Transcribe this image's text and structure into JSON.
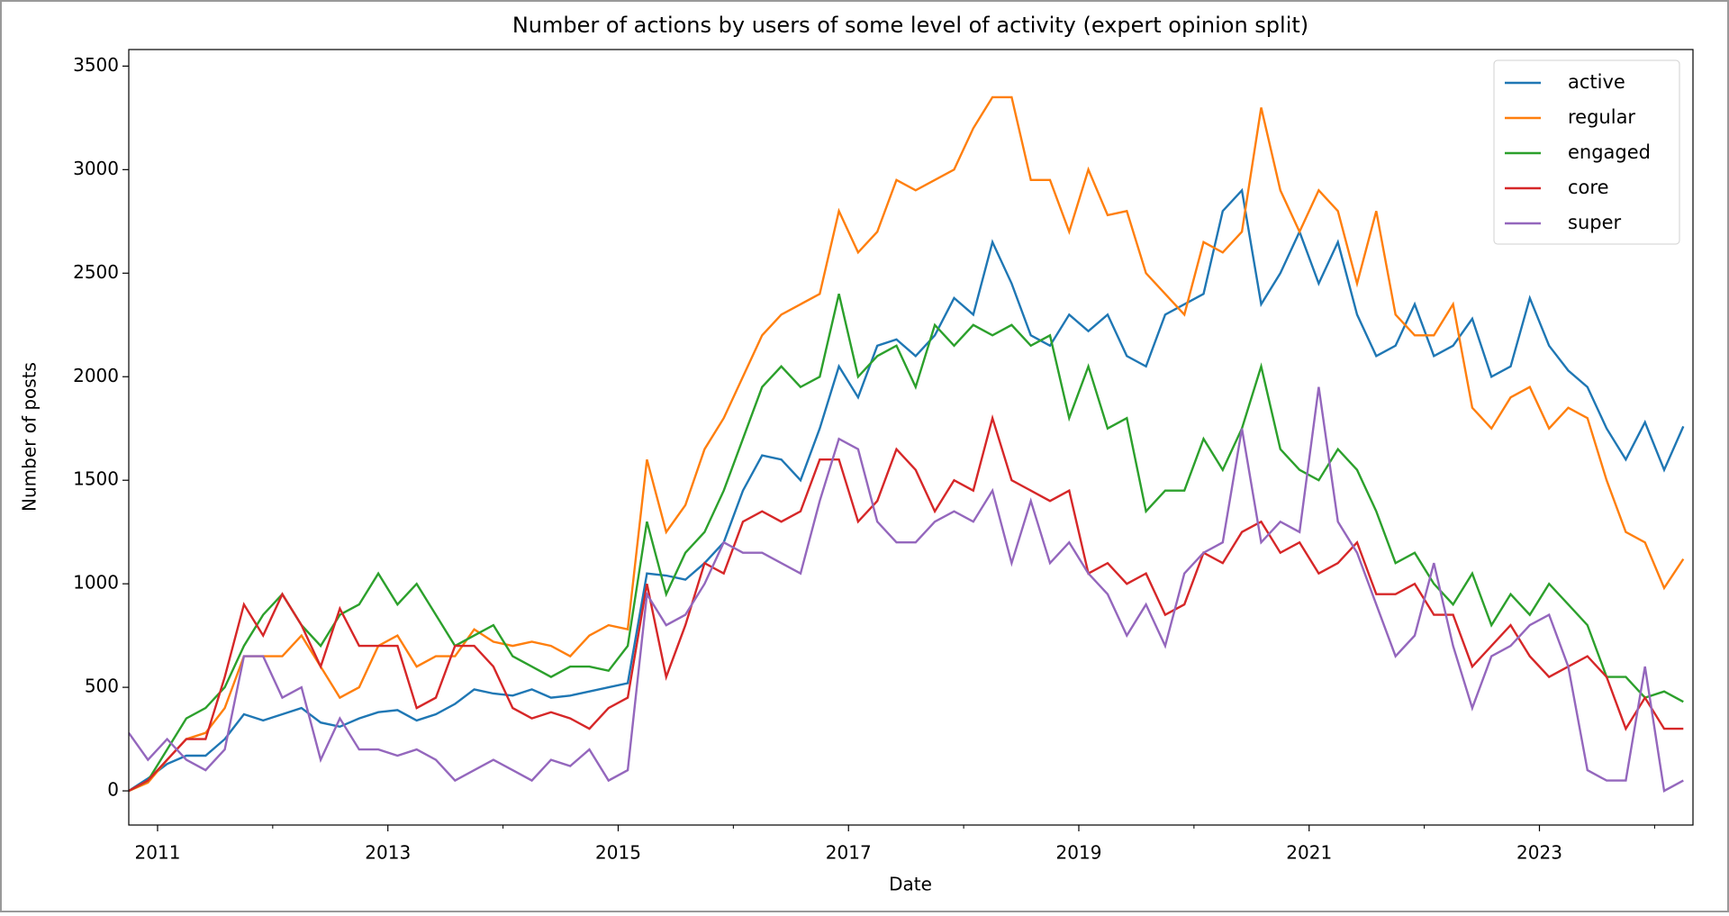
{
  "chart_data": {
    "type": "line",
    "title": "Number of actions by users of some level of activity (expert opinion split)",
    "xlabel": "Date",
    "ylabel": "Number of posts",
    "x": [
      "2010-10",
      "2010-12",
      "2011-02",
      "2011-04",
      "2011-06",
      "2011-08",
      "2011-10",
      "2011-12",
      "2012-02",
      "2012-04",
      "2012-06",
      "2012-08",
      "2012-10",
      "2012-12",
      "2013-02",
      "2013-04",
      "2013-06",
      "2013-08",
      "2013-10",
      "2013-12",
      "2014-02",
      "2014-04",
      "2014-06",
      "2014-08",
      "2014-10",
      "2014-12",
      "2015-02",
      "2015-04",
      "2015-06",
      "2015-08",
      "2015-10",
      "2015-12",
      "2016-02",
      "2016-04",
      "2016-06",
      "2016-08",
      "2016-10",
      "2016-12",
      "2017-02",
      "2017-04",
      "2017-06",
      "2017-08",
      "2017-10",
      "2017-12",
      "2018-02",
      "2018-04",
      "2018-06",
      "2018-08",
      "2018-10",
      "2018-12",
      "2019-02",
      "2019-04",
      "2019-06",
      "2019-08",
      "2019-10",
      "2019-12",
      "2020-02",
      "2020-04",
      "2020-06",
      "2020-08",
      "2020-10",
      "2020-12",
      "2021-02",
      "2021-04",
      "2021-06",
      "2021-08",
      "2021-10",
      "2021-12",
      "2022-02",
      "2022-04",
      "2022-06",
      "2022-08",
      "2022-10",
      "2022-12",
      "2023-02",
      "2023-04",
      "2023-06",
      "2023-08",
      "2023-10",
      "2023-12",
      "2024-02",
      "2024-04"
    ],
    "series": [
      {
        "name": "active",
        "color": "#1f77b4",
        "values": [
          0,
          60,
          130,
          170,
          170,
          250,
          370,
          340,
          370,
          400,
          330,
          310,
          350,
          380,
          390,
          340,
          370,
          420,
          490,
          470,
          460,
          490,
          450,
          460,
          480,
          500,
          520,
          1050,
          1040,
          1020,
          1100,
          1200,
          1450,
          1620,
          1600,
          1500,
          1750,
          2050,
          1900,
          2150,
          2180,
          2100,
          2200,
          2380,
          2300,
          2650,
          2450,
          2200,
          2150,
          2300,
          2220,
          2300,
          2100,
          2050,
          2300,
          2350,
          2400,
          2800,
          2900,
          2350,
          2500,
          2700,
          2450,
          2650,
          2300,
          2100,
          2150,
          2350,
          2100,
          2150,
          2280,
          2000,
          2050,
          2380,
          2150,
          2030,
          1950,
          1750,
          1600,
          1780,
          1550,
          1760
        ]
      },
      {
        "name": "regular",
        "color": "#ff7f0e",
        "values": [
          0,
          40,
          150,
          250,
          280,
          400,
          650,
          650,
          650,
          750,
          600,
          450,
          500,
          700,
          750,
          600,
          650,
          650,
          780,
          720,
          700,
          720,
          700,
          650,
          750,
          800,
          780,
          1600,
          1250,
          1380,
          1650,
          1800,
          2000,
          2200,
          2300,
          2350,
          2400,
          2800,
          2600,
          2700,
          2950,
          2900,
          2950,
          3000,
          3200,
          3350,
          3350,
          2950,
          2950,
          2700,
          3000,
          2780,
          2800,
          2500,
          2400,
          2300,
          2650,
          2600,
          2700,
          3300,
          2900,
          2700,
          2900,
          2800,
          2450,
          2800,
          2300,
          2200,
          2200,
          2350,
          1850,
          1750,
          1900,
          1950,
          1750,
          1850,
          1800,
          1500,
          1250,
          1200,
          980,
          1120
        ]
      },
      {
        "name": "engaged",
        "color": "#2ca02c",
        "values": [
          0,
          50,
          200,
          350,
          400,
          500,
          700,
          850,
          950,
          800,
          700,
          850,
          900,
          1050,
          900,
          1000,
          850,
          700,
          750,
          800,
          650,
          600,
          550,
          600,
          600,
          580,
          700,
          1300,
          950,
          1150,
          1250,
          1450,
          1700,
          1950,
          2050,
          1950,
          2000,
          2400,
          2000,
          2100,
          2150,
          1950,
          2250,
          2150,
          2250,
          2200,
          2250,
          2150,
          2200,
          1800,
          2050,
          1750,
          1800,
          1350,
          1450,
          1450,
          1700,
          1550,
          1750,
          2050,
          1650,
          1550,
          1500,
          1650,
          1550,
          1350,
          1100,
          1150,
          1000,
          900,
          1050,
          800,
          950,
          850,
          1000,
          900,
          800,
          550,
          550,
          450,
          480,
          430
        ]
      },
      {
        "name": "core",
        "color": "#d62728",
        "values": [
          0,
          50,
          150,
          250,
          250,
          550,
          900,
          750,
          950,
          800,
          600,
          880,
          700,
          700,
          700,
          400,
          450,
          700,
          700,
          600,
          400,
          350,
          380,
          350,
          300,
          400,
          450,
          1000,
          550,
          800,
          1100,
          1050,
          1300,
          1350,
          1300,
          1350,
          1600,
          1600,
          1300,
          1400,
          1650,
          1550,
          1350,
          1500,
          1450,
          1800,
          1500,
          1450,
          1400,
          1450,
          1050,
          1100,
          1000,
          1050,
          850,
          900,
          1150,
          1100,
          1250,
          1300,
          1150,
          1200,
          1050,
          1100,
          1200,
          950,
          950,
          1000,
          850,
          850,
          600,
          700,
          800,
          650,
          550,
          600,
          650,
          550,
          300,
          450,
          300,
          300
        ]
      },
      {
        "name": "super",
        "color": "#9467bd",
        "values": [
          280,
          150,
          250,
          150,
          100,
          200,
          650,
          650,
          450,
          500,
          150,
          350,
          200,
          200,
          170,
          200,
          150,
          50,
          100,
          150,
          100,
          50,
          150,
          120,
          200,
          50,
          100,
          950,
          800,
          850,
          1000,
          1200,
          1150,
          1150,
          1100,
          1050,
          1400,
          1700,
          1650,
          1300,
          1200,
          1200,
          1300,
          1350,
          1300,
          1450,
          1100,
          1400,
          1100,
          1200,
          1050,
          950,
          750,
          900,
          700,
          1050,
          1150,
          1200,
          1750,
          1200,
          1300,
          1250,
          1950,
          1300,
          1150,
          900,
          650,
          750,
          1100,
          700,
          400,
          650,
          700,
          800,
          850,
          600,
          100,
          50,
          50,
          600,
          0,
          50
        ]
      }
    ],
    "xlim": [
      "2010-10",
      "2024-05"
    ],
    "xticks": [
      {
        "value": "2011-01",
        "label": "2011"
      },
      {
        "value": "2013-01",
        "label": "2013"
      },
      {
        "value": "2015-01",
        "label": "2015"
      },
      {
        "value": "2017-01",
        "label": "2017"
      },
      {
        "value": "2019-01",
        "label": "2019"
      },
      {
        "value": "2021-01",
        "label": "2021"
      },
      {
        "value": "2023-01",
        "label": "2023"
      }
    ],
    "xminor": [
      "2012-01",
      "2014-01",
      "2016-01",
      "2018-01",
      "2020-01",
      "2022-01",
      "2024-01"
    ],
    "ylim": [
      -165,
      3580
    ],
    "yticks": [
      0,
      500,
      1000,
      1500,
      2000,
      2500,
      3000,
      3500
    ],
    "legend": "upper right",
    "grid": false
  }
}
